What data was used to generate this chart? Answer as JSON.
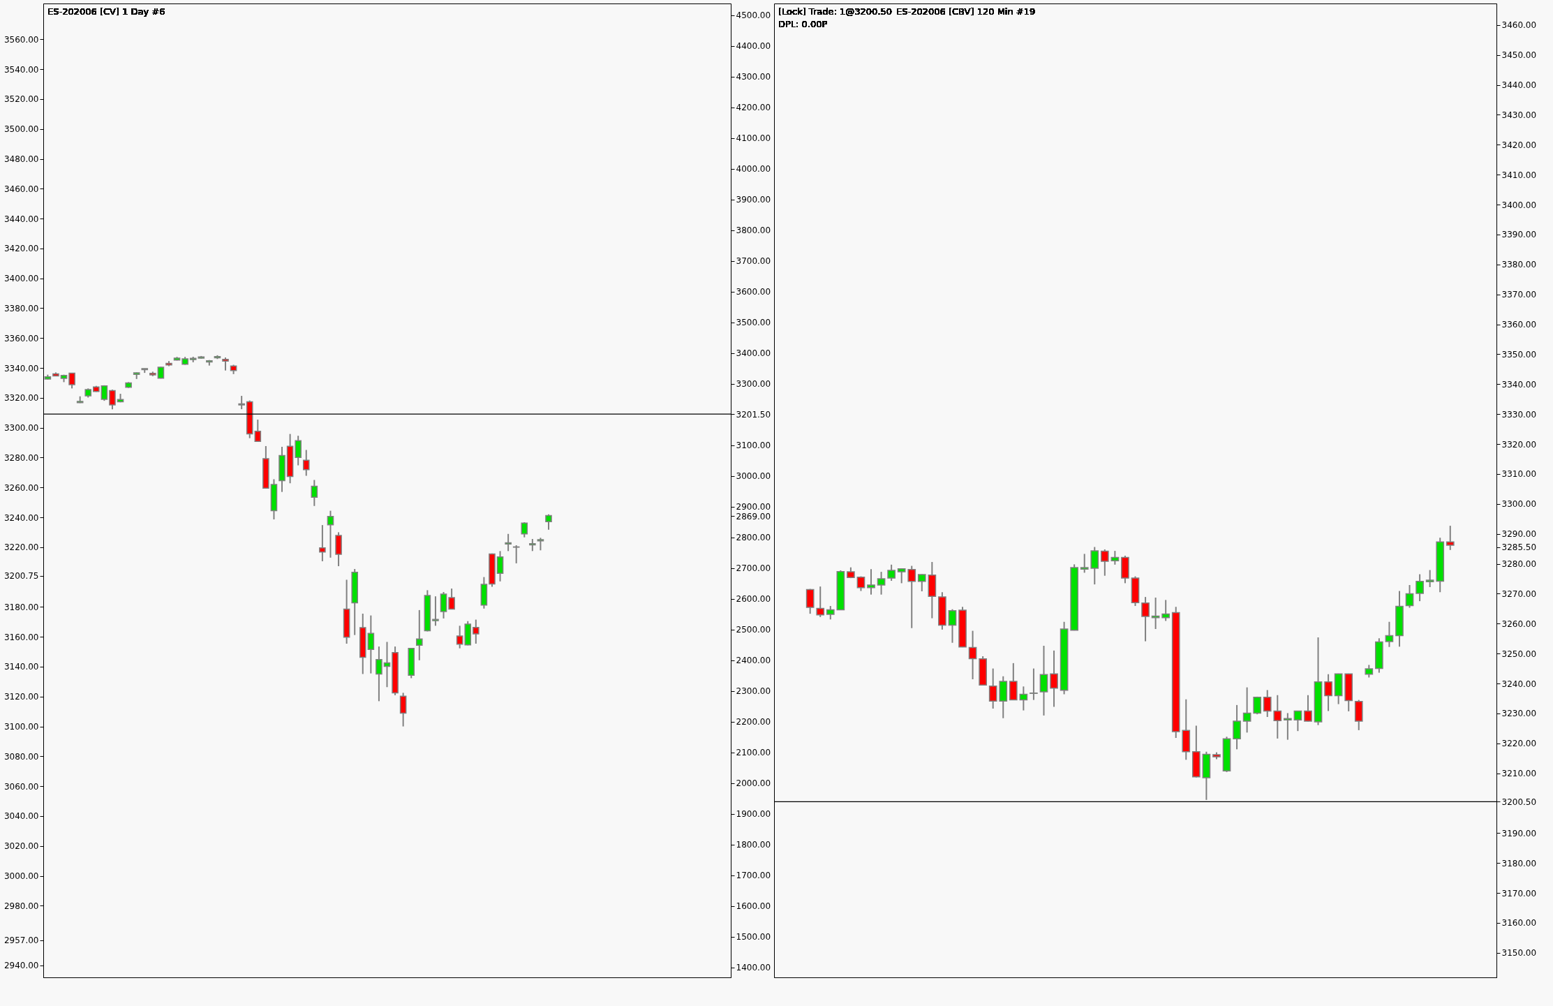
{
  "chart_data": [
    {
      "type": "candlestick",
      "title": "ES-202006 [CV]  1 Day   #6",
      "tick_labels": "y",
      "categories": [
        null,
        null,
        null,
        null,
        null,
        null,
        null,
        null,
        null,
        null,
        null,
        null,
        null,
        null,
        null,
        null,
        null,
        null,
        null,
        null,
        null,
        null,
        null,
        null,
        null,
        null,
        null,
        null,
        null,
        null,
        null,
        null,
        null,
        null,
        null,
        null,
        null,
        null,
        null,
        null,
        null,
        null,
        null,
        null,
        null,
        null,
        null,
        null,
        null,
        null,
        null,
        null,
        null,
        null,
        null,
        null,
        null,
        null,
        null,
        null,
        null,
        null,
        null,
        null,
        null,
        null,
        null,
        null,
        null,
        null,
        null,
        null,
        null,
        null,
        null,
        null,
        null,
        null,
        null,
        null,
        null,
        null,
        null,
        null,
        null
      ],
      "ohlc": [
        [
          3332.6,
          3335.5,
          3332.3,
          3334.1
        ],
        [
          3336,
          3337,
          3334.5,
          3334.7
        ],
        [
          3333,
          3335.5,
          3330.5,
          3335
        ],
        [
          3336.5,
          3336.7,
          3326.3,
          3328.8
        ],
        [
          3316.8,
          3321,
          3316.5,
          3317.6
        ],
        [
          3321.3,
          3326.3,
          3320.2,
          3325.5
        ],
        [
          3327.3,
          3328,
          3324,
          3324.3
        ],
        [
          3319,
          3328.4,
          3318,
          3328
        ],
        [
          3324.8,
          3325.5,
          3312.3,
          3315.3
        ],
        [
          3317.4,
          3322.7,
          3317,
          3318.9
        ],
        [
          3327,
          3330.5,
          3326.6,
          3330
        ],
        [
          3335.7,
          3337,
          3332.6,
          3336.7
        ],
        [
          3338.8,
          3339.6,
          3336.7,
          3339.6
        ],
        [
          3336.4,
          3337.5,
          3334.5,
          3335.4
        ],
        [
          3333.1,
          3340.8,
          3332.9,
          3340.5
        ],
        [
          3343.1,
          3344.6,
          3341.2,
          3342
        ],
        [
          3345.3,
          3347.4,
          3345,
          3346.6
        ],
        [
          3342.5,
          3347.4,
          3342.1,
          3346.1
        ],
        [
          3345.6,
          3347.5,
          3343.8,
          3346.4
        ],
        [
          3346.6,
          3348,
          3346.3,
          3347.4
        ],
        [
          3344,
          3345.3,
          3341.6,
          3344.8
        ],
        [
          3346.8,
          3348.5,
          3346,
          3347.6
        ],
        [
          3345.8,
          3347,
          3338.3,
          3344.6
        ],
        [
          3341.3,
          3342.1,
          3335.9,
          3338.3
        ],
        [
          3315.2,
          3321.3,
          3312.4,
          3316
        ],
        [
          3317.4,
          3318.2,
          3293,
          3295.8
        ],
        [
          3297.6,
          3305.4,
          3290.8,
          3290.8
        ],
        [
          3279.3,
          3287.7,
          3259.5,
          3259.5
        ],
        [
          3244.4,
          3265.5,
          3238.6,
          3262
        ],
        [
          3264.5,
          3287.2,
          3257,
          3281.4
        ],
        [
          3287.6,
          3295.8,
          3262.8,
          3267.4
        ],
        [
          3280.1,
          3294.6,
          3274.8,
          3291.3
        ],
        [
          3278.2,
          3285.1,
          3267.8,
          3271.9
        ],
        [
          3253.4,
          3265,
          3247.6,
          3260.8
        ],
        [
          3219.6,
          3234.8,
          3210.6,
          3216.8
        ],
        [
          3235,
          3244.4,
          3213,
          3240.6
        ],
        [
          3227.9,
          3230,
          3207.3,
          3215.2
        ],
        [
          3178.5,
          3198.2,
          3155.4,
          3159.7
        ],
        [
          3182.8,
          3205.4,
          3161.2,
          3203.2
        ],
        [
          3166.2,
          3175.5,
          3135.1,
          3146.3
        ],
        [
          3151.5,
          3174.3,
          3135.5,
          3162.3
        ],
        [
          3135.1,
          3153.5,
          3116.9,
          3144.8
        ],
        [
          3140.2,
          3156.6,
          3126.3,
          3142.5
        ],
        [
          3149.4,
          3153.5,
          3120.9,
          3122.5
        ],
        [
          3120.2,
          3122.5,
          3100,
          3108.9
        ],
        [
          3134.3,
          3152.6,
          3132.3,
          3152.3
        ],
        [
          3154.3,
          3177.9,
          3144.3,
          3158.6
        ],
        [
          3164,
          3191.2,
          3163.6,
          3187.7
        ],
        [
          3170.8,
          3187.1,
          3167.4,
          3171.6
        ],
        [
          3176.9,
          3190,
          3172.3,
          3188.6
        ],
        [
          3186.2,
          3192.3,
          3178.5,
          3178.5
        ],
        [
          3160.5,
          3167.4,
          3152.3,
          3155.1
        ],
        [
          3154.6,
          3170.5,
          3154.3,
          3168.5
        ],
        [
          3166.3,
          3171.5,
          3155.4,
          3162
        ],
        [
          3181.2,
          3200,
          3178.9,
          3195.1
        ],
        [
          3215.5,
          3215.8,
          3193.5,
          3195.4
        ],
        [
          3202.5,
          3217.4,
          3197.1,
          3213.5
        ],
        [
          3222.1,
          3228.9,
          3217.4,
          3222.9
        ],
        [
          3220.2,
          3221.3,
          3209.2,
          3220
        ],
        [
          3228.9,
          3236.7,
          3226.6,
          3236.2
        ],
        [
          3221.6,
          3225.5,
          3217.4,
          3222.4
        ],
        [
          3224.2,
          3226.3,
          3217.9,
          3225
        ],
        [
          3237.1,
          3242,
          3231.7,
          3241.2
        ],
        null,
        null,
        null,
        null,
        null,
        null,
        null,
        null,
        null,
        null,
        null,
        null,
        null,
        null,
        null,
        null,
        null,
        null,
        null,
        null,
        null,
        null
      ],
      "ylim": [
        2932,
        3584
      ],
      "yticks": [
        {
          "value": 2940,
          "label": "2940.00"
        },
        {
          "value": 2957,
          "label": "2957.00"
        },
        {
          "value": 2980,
          "label": "2980.00"
        },
        {
          "value": 3000,
          "label": "3000.00"
        },
        {
          "value": 3020,
          "label": "3020.00"
        },
        {
          "value": 3040,
          "label": "3040.00"
        },
        {
          "value": 3060,
          "label": "3060.00"
        },
        {
          "value": 3080,
          "label": "3080.00"
        },
        {
          "value": 3100,
          "label": "3100.00"
        },
        {
          "value": 3120,
          "label": "3120.00"
        },
        {
          "value": 3140,
          "label": "3140.00"
        },
        {
          "value": 3160,
          "label": "3160.00"
        },
        {
          "value": 3180,
          "label": "3180.00"
        },
        {
          "value": 3200.75,
          "label": "3200.75"
        },
        {
          "value": 3220,
          "label": "3220.00"
        },
        {
          "value": 3240,
          "label": "3240.00"
        },
        {
          "value": 3260,
          "label": "3260.00"
        },
        {
          "value": 3280,
          "label": "3280.00"
        },
        {
          "value": 3300,
          "label": "3300.00"
        },
        {
          "value": 3320,
          "label": "3320.00"
        },
        {
          "value": 3340,
          "label": "3340.00"
        },
        {
          "value": 3360,
          "label": "3360.00"
        },
        {
          "value": 3380,
          "label": "3380.00"
        },
        {
          "value": 3400,
          "label": "3400.00"
        },
        {
          "value": 3420,
          "label": "3420.00"
        },
        {
          "value": 3440,
          "label": "3440.00"
        },
        {
          "value": 3460,
          "label": "3460.00"
        },
        {
          "value": 3480,
          "label": "3480.00"
        },
        {
          "value": 3500,
          "label": "3500.00"
        },
        {
          "value": 3520,
          "label": "3520.00"
        },
        {
          "value": 3540,
          "label": "3540.00"
        },
        {
          "value": 3560,
          "label": "3560.00"
        }
      ],
      "y2lim": [
        1368,
        4538
      ],
      "y2ticks": [
        {
          "value": 1400,
          "label": "1400.00"
        },
        {
          "value": 1500,
          "label": "1500.00"
        },
        {
          "value": 1600,
          "label": "1600.00"
        },
        {
          "value": 1700,
          "label": "1700.00"
        },
        {
          "value": 1800,
          "label": "1800.00"
        },
        {
          "value": 1900,
          "label": "1900.00"
        },
        {
          "value": 2000,
          "label": "2000.00"
        },
        {
          "value": 2100,
          "label": "2100.00"
        },
        {
          "value": 2200,
          "label": "2200.00"
        },
        {
          "value": 2300,
          "label": "2300.00"
        },
        {
          "value": 2400,
          "label": "2400.00"
        },
        {
          "value": 2500,
          "label": "2500.00"
        },
        {
          "value": 2600,
          "label": "2600.00"
        },
        {
          "value": 2700,
          "label": "2700.00"
        },
        {
          "value": 2800,
          "label": "2800.00"
        },
        {
          "value": 2869,
          "label": "2869.00"
        },
        {
          "value": 2900,
          "label": "2900.00"
        },
        {
          "value": 3000,
          "label": "3000.00"
        },
        {
          "value": 3100,
          "label": "3100.00"
        },
        {
          "value": 3201.5,
          "label": "3201.50"
        },
        {
          "value": 3300,
          "label": "3300.00"
        },
        {
          "value": 3400,
          "label": "3400.00"
        },
        {
          "value": 3500,
          "label": "3500.00"
        },
        {
          "value": 3600,
          "label": "3600.00"
        },
        {
          "value": 3700,
          "label": "3700.00"
        },
        {
          "value": 3800,
          "label": "3800.00"
        },
        {
          "value": 3900,
          "label": "3900.00"
        },
        {
          "value": 4000,
          "label": "4000.00"
        },
        {
          "value": 4100,
          "label": "4100.00"
        },
        {
          "value": 4200,
          "label": "4200.00"
        },
        {
          "value": 4300,
          "label": "4300.00"
        },
        {
          "value": 4400,
          "label": "4400.00"
        },
        {
          "value": 4500,
          "label": "4500.00"
        }
      ],
      "ref_lines": [
        {
          "axis": "y2",
          "value": 3201.5,
          "color": "#000000",
          "line_style": "solid"
        }
      ]
    },
    {
      "type": "candlestick",
      "title": "ES-202006 [CBV]  120 Min   #19",
      "tick_labels": "y",
      "annotations": [
        "[Lock] Trade: 1@3200.50",
        "DPL: 0.00P"
      ],
      "categories": [
        null,
        null,
        null,
        null,
        null,
        null,
        null,
        null,
        null,
        null,
        null,
        null,
        null,
        null,
        null,
        null,
        null,
        null,
        null,
        null,
        null,
        null,
        null,
        null,
        null,
        null,
        null,
        null,
        null,
        null,
        null,
        null,
        null,
        null,
        null,
        null,
        null,
        null,
        null,
        null,
        null,
        null,
        null,
        null,
        null,
        null,
        null,
        null,
        null,
        null,
        null,
        null,
        null,
        null,
        null,
        null,
        null,
        null,
        null,
        null,
        null,
        null,
        null,
        null,
        null,
        null,
        null,
        null,
        null,
        null,
        null
      ],
      "ohlc": [
        null,
        null,
        null,
        [
          3271.4,
          3271.6,
          3263.3,
          3265.4
        ],
        [
          3265.1,
          3272.4,
          3262.2,
          3262.9
        ],
        [
          3263.1,
          3265.9,
          3261.4,
          3264.6
        ],
        [
          3264.6,
          3277.8,
          3264.5,
          3277.4
        ],
        [
          3277.3,
          3278.8,
          3275.2,
          3275.4
        ],
        [
          3275.5,
          3275.8,
          3270.9,
          3272
        ],
        [
          3272,
          3278.2,
          3269.7,
          3272.9
        ],
        [
          3272.9,
          3277.3,
          3269.7,
          3275
        ],
        [
          3275.2,
          3279.7,
          3274.3,
          3277.8
        ],
        [
          3277.3,
          3278.5,
          3273.5,
          3278.3
        ],
        [
          3278.1,
          3279.3,
          3258.5,
          3274.1
        ],
        [
          3274.1,
          3276.5,
          3270.8,
          3276.4
        ],
        [
          3276.2,
          3280.6,
          3261.8,
          3269.1
        ],
        [
          3268.9,
          3270.5,
          3258,
          3259.5
        ],
        [
          3259.5,
          3264.8,
          3253.6,
          3264.3
        ],
        [
          3264.5,
          3265.6,
          3252.1,
          3252.2
        ],
        [
          3252,
          3257.6,
          3241.4,
          3248.3
        ],
        [
          3248.2,
          3249.1,
          3239.3,
          3239.5
        ],
        [
          3239.1,
          3245,
          3231.6,
          3234.1
        ],
        [
          3234.1,
          3242.4,
          3228.4,
          3240.7
        ],
        [
          3240.7,
          3246.8,
          3234.4,
          3234.5
        ],
        [
          3234.5,
          3239,
          3231,
          3236.4
        ],
        [
          3236.7,
          3245,
          3234.5,
          3236.8
        ],
        [
          3237.2,
          3252.6,
          3229.3,
          3243
        ],
        [
          3243.2,
          3251,
          3232.2,
          3238.4
        ],
        [
          3237.7,
          3260.6,
          3236.4,
          3258.2
        ],
        [
          3257.8,
          3279.8,
          3257.7,
          3278.7
        ],
        [
          3278.2,
          3283.3,
          3277,
          3278.7
        ],
        [
          3278.5,
          3285.6,
          3273.1,
          3284.3
        ],
        [
          3284.2,
          3284.8,
          3276,
          3280.8
        ],
        [
          3281,
          3284.3,
          3279.7,
          3282.1
        ],
        [
          3282.1,
          3282.7,
          3273.5,
          3275.2
        ],
        [
          3275.2,
          3275.8,
          3265.9,
          3267
        ],
        [
          3266.9,
          3268.9,
          3254.1,
          3262.4
        ],
        [
          3262,
          3268.7,
          3258.2,
          3262.5
        ],
        [
          3262,
          3267.9,
          3260.9,
          3263.2
        ],
        [
          3263.7,
          3265.6,
          3221.8,
          3223.9
        ],
        [
          3224.3,
          3234.7,
          3214.5,
          3217.2
        ],
        [
          3217.2,
          3225.9,
          3208.6,
          3208.8
        ],
        [
          3208.5,
          3217.2,
          3201.1,
          3216.3
        ],
        [
          3216.2,
          3217,
          3214.7,
          3215.5
        ],
        [
          3210.8,
          3222.2,
          3210.4,
          3221.5
        ],
        [
          3221.5,
          3232.8,
          3218,
          3227.4
        ],
        [
          3227.4,
          3238.7,
          3223.6,
          3230.1
        ],
        [
          3230.1,
          3235.6,
          3229.7,
          3235.4
        ],
        [
          3235.4,
          3237.8,
          3228.8,
          3230.8
        ],
        [
          3230.8,
          3236.1,
          3221.6,
          3227.6
        ],
        [
          3227.8,
          3230.1,
          3221.2,
          3228.3
        ],
        [
          3227.8,
          3230.9,
          3224.1,
          3230.8
        ],
        [
          3230.8,
          3236.1,
          3227.3,
          3227.4
        ],
        [
          3227.2,
          3255.4,
          3226.1,
          3240.5
        ],
        [
          3240.5,
          3243.1,
          3230.8,
          3235.9
        ],
        [
          3235.9,
          3243.3,
          3233.1,
          3243.2
        ],
        [
          3243.2,
          3243.3,
          3230.7,
          3234.3
        ],
        [
          3234,
          3234.5,
          3224.4,
          3227.4
        ],
        [
          3243.1,
          3246.2,
          3242,
          3244.9
        ],
        [
          3245,
          3255.1,
          3243.6,
          3253.9
        ],
        [
          3254,
          3260.6,
          3252.2,
          3256
        ],
        [
          3256,
          3270.9,
          3252.3,
          3265.8
        ],
        [
          3266,
          3272.9,
          3265.3,
          3270
        ],
        [
          3270.1,
          3276.5,
          3267.5,
          3274.1
        ],
        [
          3274,
          3277.9,
          3272.2,
          3274.5
        ],
        [
          3274.2,
          3288.7,
          3270.5,
          3287.3
        ],
        [
          3287.3,
          3292.7,
          3284.6,
          3286.2
        ],
        null,
        null,
        null,
        null
      ],
      "ylim": [
        3141.8,
        3467.2
      ],
      "yticks": [
        {
          "value": 3150,
          "label": "3150.00"
        },
        {
          "value": 3160,
          "label": "3160.00"
        },
        {
          "value": 3170,
          "label": "3170.00"
        },
        {
          "value": 3180,
          "label": "3180.00"
        },
        {
          "value": 3190,
          "label": "3190.00"
        },
        {
          "value": 3200.5,
          "label": "3200.50"
        },
        {
          "value": 3210,
          "label": "3210.00"
        },
        {
          "value": 3220,
          "label": "3220.00"
        },
        {
          "value": 3230,
          "label": "3230.00"
        },
        {
          "value": 3240,
          "label": "3240.00"
        },
        {
          "value": 3250,
          "label": "3250.00"
        },
        {
          "value": 3260,
          "label": "3260.00"
        },
        {
          "value": 3270,
          "label": "3270.00"
        },
        {
          "value": 3280,
          "label": "3280.00"
        },
        {
          "value": 3285.5,
          "label": "3285.50"
        },
        {
          "value": 3290,
          "label": "3290.00"
        },
        {
          "value": 3300,
          "label": "3300.00"
        },
        {
          "value": 3310,
          "label": "3310.00"
        },
        {
          "value": 3320,
          "label": "3320.00"
        },
        {
          "value": 3330,
          "label": "3330.00"
        },
        {
          "value": 3340,
          "label": "3340.00"
        },
        {
          "value": 3350,
          "label": "3350.00"
        },
        {
          "value": 3360,
          "label": "3360.00"
        },
        {
          "value": 3370,
          "label": "3370.00"
        },
        {
          "value": 3380,
          "label": "3380.00"
        },
        {
          "value": 3390,
          "label": "3390.00"
        },
        {
          "value": 3400,
          "label": "3400.00"
        },
        {
          "value": 3410,
          "label": "3410.00"
        },
        {
          "value": 3420,
          "label": "3420.00"
        },
        {
          "value": 3430,
          "label": "3430.00"
        },
        {
          "value": 3440,
          "label": "3440.00"
        },
        {
          "value": 3450,
          "label": "3450.00"
        },
        {
          "value": 3460,
          "label": "3460.00"
        }
      ],
      "ref_lines": [
        {
          "axis": "y",
          "value": 3200.5,
          "color": "#000000",
          "line_style": "solid"
        }
      ]
    }
  ]
}
